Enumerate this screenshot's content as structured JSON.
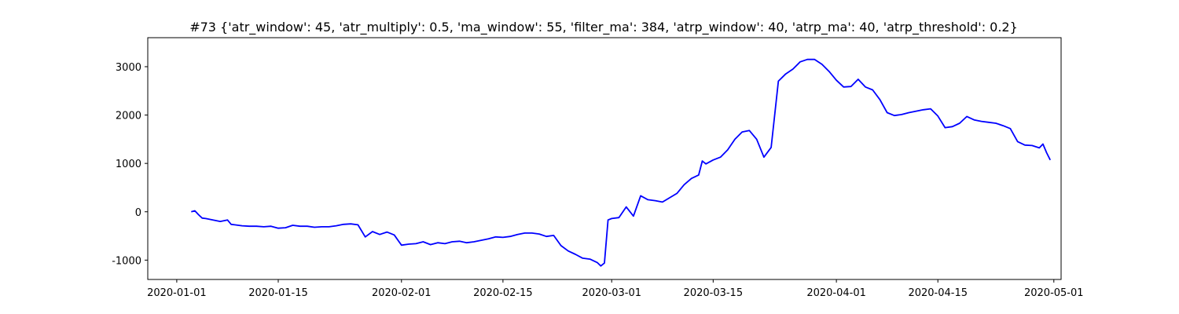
{
  "chart_data": {
    "type": "line",
    "title": "#73 {'atr_window': 45, 'atr_multiply': 0.5, 'ma_window': 55, 'filter_ma': 384, 'atrp_window': 40, 'atrp_ma': 40, 'atrp_threshold': 0.2}",
    "xlabel": "",
    "ylabel": "",
    "x_axis": "date",
    "xlim": [
      "2019-12-28",
      "2020-05-02"
    ],
    "ylim": [
      -1400,
      3600
    ],
    "grid": false,
    "xticks": [
      "2020-01-01",
      "2020-01-15",
      "2020-02-01",
      "2020-02-15",
      "2020-03-01",
      "2020-03-15",
      "2020-04-01",
      "2020-04-15",
      "2020-05-01"
    ],
    "yticks": [
      -1000,
      0,
      1000,
      2000,
      3000
    ],
    "series": [
      {
        "color": "#0000ff",
        "points": [
          [
            "2020-01-03",
            0
          ],
          [
            "2020-01-03T12:00",
            20
          ],
          [
            "2020-01-04",
            -60
          ],
          [
            "2020-01-04T12:00",
            -130
          ],
          [
            "2020-01-05",
            -140
          ],
          [
            "2020-01-06",
            -170
          ],
          [
            "2020-01-07",
            -200
          ],
          [
            "2020-01-08",
            -170
          ],
          [
            "2020-01-08T12:00",
            -260
          ],
          [
            "2020-01-09",
            -270
          ],
          [
            "2020-01-10",
            -290
          ],
          [
            "2020-01-11",
            -300
          ],
          [
            "2020-01-12",
            -300
          ],
          [
            "2020-01-13",
            -310
          ],
          [
            "2020-01-14",
            -300
          ],
          [
            "2020-01-15",
            -340
          ],
          [
            "2020-01-16",
            -330
          ],
          [
            "2020-01-17",
            -280
          ],
          [
            "2020-01-18",
            -300
          ],
          [
            "2020-01-19",
            -300
          ],
          [
            "2020-01-20",
            -320
          ],
          [
            "2020-01-21",
            -310
          ],
          [
            "2020-01-22",
            -310
          ],
          [
            "2020-01-23",
            -290
          ],
          [
            "2020-01-24",
            -260
          ],
          [
            "2020-01-25",
            -250
          ],
          [
            "2020-01-26",
            -270
          ],
          [
            "2020-01-27",
            -520
          ],
          [
            "2020-01-28",
            -410
          ],
          [
            "2020-01-29",
            -470
          ],
          [
            "2020-01-30",
            -420
          ],
          [
            "2020-01-31",
            -480
          ],
          [
            "2020-02-01",
            -690
          ],
          [
            "2020-02-02",
            -670
          ],
          [
            "2020-02-03",
            -660
          ],
          [
            "2020-02-04",
            -620
          ],
          [
            "2020-02-05",
            -680
          ],
          [
            "2020-02-06",
            -640
          ],
          [
            "2020-02-07",
            -660
          ],
          [
            "2020-02-08",
            -620
          ],
          [
            "2020-02-09",
            -610
          ],
          [
            "2020-02-10",
            -640
          ],
          [
            "2020-02-11",
            -620
          ],
          [
            "2020-02-12",
            -590
          ],
          [
            "2020-02-13",
            -560
          ],
          [
            "2020-02-14",
            -520
          ],
          [
            "2020-02-15",
            -530
          ],
          [
            "2020-02-16",
            -510
          ],
          [
            "2020-02-17",
            -470
          ],
          [
            "2020-02-18",
            -440
          ],
          [
            "2020-02-19",
            -440
          ],
          [
            "2020-02-20",
            -460
          ],
          [
            "2020-02-21",
            -510
          ],
          [
            "2020-02-22",
            -490
          ],
          [
            "2020-02-23",
            -700
          ],
          [
            "2020-02-24",
            -810
          ],
          [
            "2020-02-25",
            -880
          ],
          [
            "2020-02-26",
            -960
          ],
          [
            "2020-02-27",
            -980
          ],
          [
            "2020-02-28",
            -1050
          ],
          [
            "2020-02-28T12:00",
            -1120
          ],
          [
            "2020-02-29",
            -1060
          ],
          [
            "2020-02-29T12:00",
            -170
          ],
          [
            "2020-03-01",
            -140
          ],
          [
            "2020-03-02",
            -120
          ],
          [
            "2020-03-03",
            100
          ],
          [
            "2020-03-04",
            -90
          ],
          [
            "2020-03-05",
            330
          ],
          [
            "2020-03-06",
            250
          ],
          [
            "2020-03-07",
            230
          ],
          [
            "2020-03-08",
            200
          ],
          [
            "2020-03-09",
            290
          ],
          [
            "2020-03-10",
            380
          ],
          [
            "2020-03-11",
            560
          ],
          [
            "2020-03-12",
            690
          ],
          [
            "2020-03-13",
            760
          ],
          [
            "2020-03-13T12:00",
            1050
          ],
          [
            "2020-03-14",
            990
          ],
          [
            "2020-03-15",
            1070
          ],
          [
            "2020-03-16",
            1130
          ],
          [
            "2020-03-17",
            1280
          ],
          [
            "2020-03-18",
            1500
          ],
          [
            "2020-03-19",
            1650
          ],
          [
            "2020-03-20",
            1680
          ],
          [
            "2020-03-21",
            1500
          ],
          [
            "2020-03-22",
            1130
          ],
          [
            "2020-03-23",
            1330
          ],
          [
            "2020-03-24",
            2700
          ],
          [
            "2020-03-25",
            2850
          ],
          [
            "2020-03-26",
            2950
          ],
          [
            "2020-03-27",
            3100
          ],
          [
            "2020-03-28",
            3150
          ],
          [
            "2020-03-29",
            3150
          ],
          [
            "2020-03-30",
            3050
          ],
          [
            "2020-03-31",
            2900
          ],
          [
            "2020-04-01",
            2720
          ],
          [
            "2020-04-02",
            2580
          ],
          [
            "2020-04-03",
            2590
          ],
          [
            "2020-04-04",
            2740
          ],
          [
            "2020-04-05",
            2580
          ],
          [
            "2020-04-06",
            2520
          ],
          [
            "2020-04-07",
            2320
          ],
          [
            "2020-04-08",
            2050
          ],
          [
            "2020-04-09",
            1990
          ],
          [
            "2020-04-10",
            2010
          ],
          [
            "2020-04-11",
            2050
          ],
          [
            "2020-04-12",
            2080
          ],
          [
            "2020-04-13",
            2110
          ],
          [
            "2020-04-14",
            2130
          ],
          [
            "2020-04-15",
            1980
          ],
          [
            "2020-04-16",
            1740
          ],
          [
            "2020-04-17",
            1760
          ],
          [
            "2020-04-18",
            1830
          ],
          [
            "2020-04-19",
            1970
          ],
          [
            "2020-04-20",
            1900
          ],
          [
            "2020-04-21",
            1870
          ],
          [
            "2020-04-22",
            1850
          ],
          [
            "2020-04-23",
            1830
          ],
          [
            "2020-04-24",
            1780
          ],
          [
            "2020-04-25",
            1720
          ],
          [
            "2020-04-26",
            1450
          ],
          [
            "2020-04-27",
            1380
          ],
          [
            "2020-04-28",
            1370
          ],
          [
            "2020-04-29",
            1320
          ],
          [
            "2020-04-29T12:00",
            1400
          ],
          [
            "2020-04-30",
            1220
          ],
          [
            "2020-04-30T12:00",
            1070
          ]
        ]
      }
    ]
  }
}
